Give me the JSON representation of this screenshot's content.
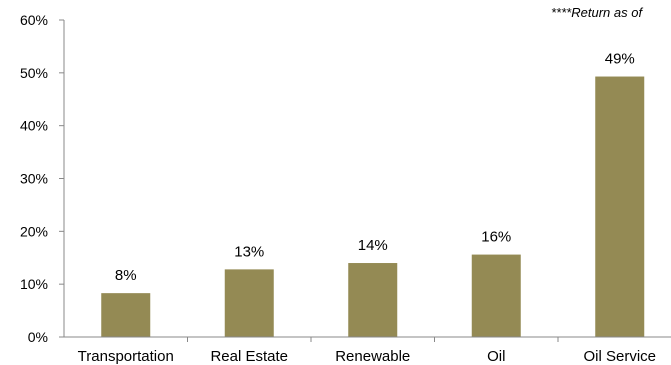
{
  "note": "****Return as of",
  "chart_data": {
    "type": "bar",
    "categories": [
      "Transportation",
      "Real Estate",
      "Renewable",
      "Oil",
      "Oil Service"
    ],
    "values": [
      8.3,
      12.8,
      14.0,
      15.6,
      49.3
    ],
    "data_labels": [
      "8%",
      "13%",
      "14%",
      "16%",
      "49%"
    ],
    "ylim": [
      0,
      60
    ],
    "yticks": [
      0,
      10,
      20,
      30,
      40,
      50,
      60
    ],
    "ytick_labels": [
      "0%",
      "10%",
      "20%",
      "30%",
      "40%",
      "50%",
      "60%"
    ],
    "bar_color": "#948a54",
    "grid": false,
    "legend": "none"
  }
}
